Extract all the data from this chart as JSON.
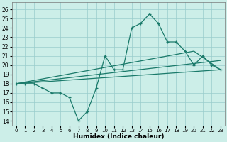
{
  "xlabel": "Humidex (Indice chaleur)",
  "xlim": [
    -0.5,
    23.5
  ],
  "ylim": [
    13.5,
    26.8
  ],
  "yticks": [
    14,
    15,
    16,
    17,
    18,
    19,
    20,
    21,
    22,
    23,
    24,
    25,
    26
  ],
  "xticks": [
    0,
    1,
    2,
    3,
    4,
    5,
    6,
    7,
    8,
    9,
    10,
    11,
    12,
    13,
    14,
    15,
    16,
    17,
    18,
    19,
    20,
    21,
    22,
    23
  ],
  "bg_color": "#cceee8",
  "grid_color": "#99cccc",
  "line_color": "#1a7a6a",
  "wavy": {
    "x": [
      0,
      1,
      2,
      3,
      4,
      5,
      6,
      7,
      8,
      9,
      10,
      11,
      12,
      13,
      14,
      15,
      16,
      17,
      18,
      19,
      20,
      21,
      22,
      23
    ],
    "y": [
      18,
      18,
      18,
      17.5,
      17,
      17,
      16.5,
      14,
      15,
      17.5,
      21,
      19.5,
      19.5,
      24,
      24.5,
      25.5,
      24.5,
      22.5,
      22.5,
      21.5,
      20,
      21,
      20,
      19.5
    ]
  },
  "lines": [
    {
      "x": [
        0,
        23
      ],
      "y": [
        18,
        19.5
      ]
    },
    {
      "x": [
        0,
        23
      ],
      "y": [
        18,
        20.5
      ]
    },
    {
      "x": [
        0,
        20,
        23
      ],
      "y": [
        18,
        21.5,
        19.5
      ]
    }
  ]
}
